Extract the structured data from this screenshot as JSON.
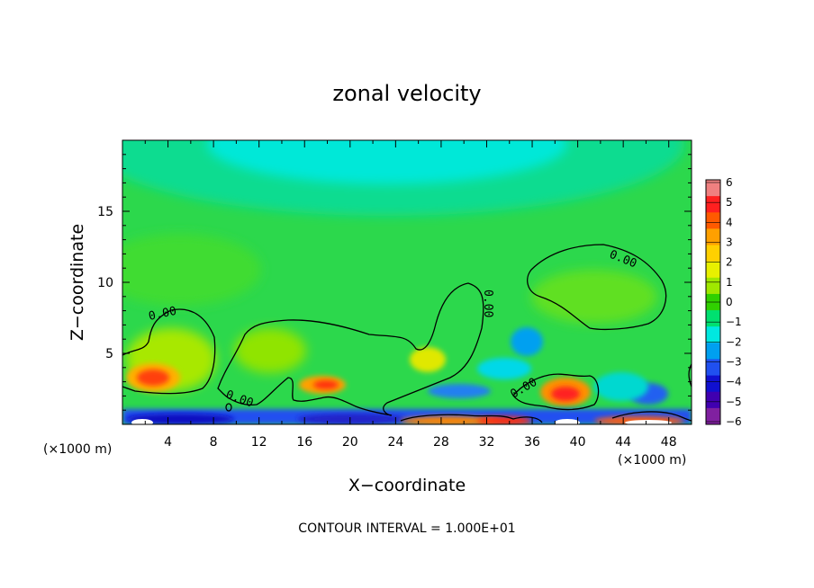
{
  "chart_data": {
    "type": "heatmap",
    "title": "zonal velocity",
    "xlabel": "X−coordinate",
    "ylabel": "Z−coordinate",
    "x_unit_left": "(×1000 m)",
    "x_unit_right": "(×1000 m)",
    "xlim": [
      0,
      50
    ],
    "ylim": [
      0,
      20
    ],
    "x_ticks": [
      4,
      8,
      12,
      16,
      20,
      24,
      28,
      32,
      36,
      40,
      44,
      48
    ],
    "y_ticks": [
      5,
      10,
      15
    ],
    "colorbar": {
      "levels": [
        6,
        5,
        4,
        3,
        2,
        1,
        0,
        -1,
        -2,
        -3,
        -4,
        -5,
        -6
      ],
      "labels": [
        "6",
        "5",
        "4",
        "3",
        "2",
        "1",
        "0",
        "−1",
        "−2",
        "−3",
        "−4",
        "−5",
        "−6"
      ],
      "colors": [
        "#f08080",
        "#ff2020",
        "#ff5a00",
        "#ffa000",
        "#ffd000",
        "#e8f000",
        "#a0e800",
        "#30d000",
        "#00e070",
        "#00e8e0",
        "#00a0f0",
        "#2050f0",
        "#1010d0",
        "#4000b0",
        "#8020a0"
      ]
    },
    "contour_label": "0.00",
    "contour_interval_text": "CONTOUR INTERVAL = 1.000E+01",
    "grid": false,
    "legend": "colorbar-right"
  }
}
